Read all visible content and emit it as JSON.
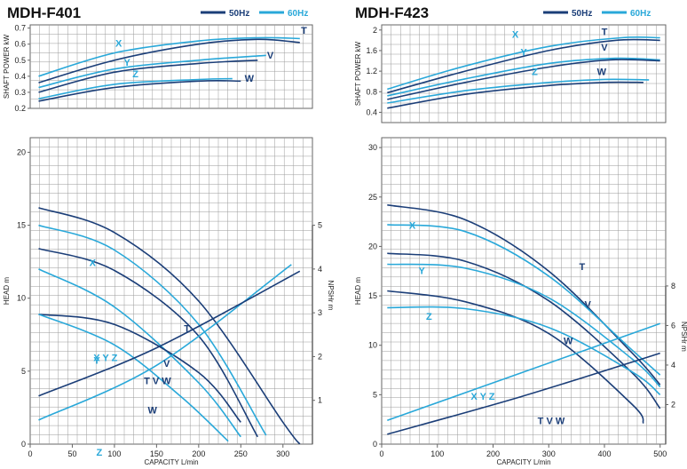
{
  "colors": {
    "c50": "#1b3e78",
    "c60": "#29a8d9",
    "grid": "#9a9a9a",
    "frame": "#666666",
    "text": "#222222"
  },
  "legend": {
    "hz50": "50Hz",
    "hz60": "60Hz"
  },
  "chart_data": [
    {
      "title": "MDH-F401",
      "xlabel": "CAPACITY  L/min",
      "power": {
        "type": "line",
        "ylabel": "SHAFT POWER  kW",
        "xlim": [
          0,
          335
        ],
        "ylim": [
          0.2,
          0.72
        ],
        "yticks": [
          0.2,
          0.3,
          0.4,
          0.5,
          0.6,
          0.7
        ],
        "xticks": [],
        "grid": true,
        "legend": "top-right",
        "series": [
          {
            "name": "T",
            "hz": "50Hz",
            "x": [
              10,
              100,
              200,
              270,
              320
            ],
            "y": [
              0.36,
              0.5,
              0.6,
              0.63,
              0.61
            ],
            "label_at": [
              325,
              0.665
            ]
          },
          {
            "name": "X",
            "hz": "60Hz",
            "x": [
              10,
              100,
              200,
              270,
              320
            ],
            "y": [
              0.4,
              0.545,
              0.62,
              0.64,
              0.635
            ],
            "label_at": [
              105,
              0.585
            ]
          },
          {
            "name": "Y",
            "hz": "60Hz",
            "x": [
              10,
              100,
              200,
              280
            ],
            "y": [
              0.33,
              0.445,
              0.5,
              0.53
            ],
            "label_at": [
              115,
              0.465
            ]
          },
          {
            "name": "V",
            "hz": "50Hz",
            "x": [
              10,
              100,
              200,
              270
            ],
            "y": [
              0.3,
              0.425,
              0.48,
              0.5
            ],
            "label_at": [
              285,
              0.51
            ]
          },
          {
            "name": "Z",
            "hz": "60Hz",
            "x": [
              10,
              100,
              200,
              240
            ],
            "y": [
              0.26,
              0.35,
              0.38,
              0.385
            ],
            "label_at": [
              125,
              0.395
            ]
          },
          {
            "name": "W",
            "hz": "50Hz",
            "x": [
              10,
              100,
              200,
              250
            ],
            "y": [
              0.245,
              0.33,
              0.37,
              0.37
            ],
            "label_at": [
              260,
              0.365
            ]
          }
        ]
      },
      "head": {
        "type": "line",
        "ylabel": "HEAD  m",
        "y2label": "NPSHr  m",
        "xlim": [
          0,
          335
        ],
        "ylim": [
          0,
          21
        ],
        "y2lim": [
          0,
          7
        ],
        "yticks": [
          0,
          5,
          10,
          15,
          20
        ],
        "y2ticks": [
          1,
          2,
          3,
          4,
          5
        ],
        "xticks": [
          0,
          50,
          100,
          150,
          200,
          250,
          300
        ],
        "grid": true,
        "series": [
          {
            "name": "T",
            "hz": "50Hz",
            "x": [
              10,
              100,
              200,
              300,
              320
            ],
            "y": [
              16.2,
              14.5,
              9.8,
              1.5,
              0
            ],
            "label_at": [
              186,
              7.7
            ]
          },
          {
            "name": "X",
            "hz": "60Hz",
            "x": [
              10,
              100,
              200,
              280
            ],
            "y": [
              15.0,
              13.3,
              8.2,
              0.6
            ],
            "label_at": [
              74,
              12.2
            ]
          },
          {
            "name": "V",
            "hz": "50Hz",
            "x": [
              10,
              100,
              200,
              270
            ],
            "y": [
              13.4,
              11.9,
              7.4,
              0.5
            ],
            "label_at": [
              162,
              5.3
            ]
          },
          {
            "name": "Y",
            "hz": "60Hz",
            "x": [
              10,
              100,
              200,
              250
            ],
            "y": [
              12.0,
              9.4,
              4.2,
              0.5
            ],
            "label_at": [
              79,
              5.5
            ]
          },
          {
            "name": "W",
            "hz": "50Hz",
            "x": [
              10,
              100,
              200,
              250
            ],
            "y": [
              8.9,
              8.2,
              4.9,
              1.5
            ],
            "label_at": [
              145,
              2.1
            ]
          },
          {
            "name": "Z",
            "hz": "60Hz",
            "x": [
              10,
              100,
              180,
              235
            ],
            "y": [
              8.9,
              6.8,
              3.2,
              0.2
            ],
            "label_at": [
              82,
              -0.8
            ]
          }
        ],
        "npsh": [
          {
            "name": "XYZ",
            "hz": "60Hz",
            "x": [
              10,
              150,
              310
            ],
            "y2": [
              0.55,
              1.8,
              4.1
            ]
          },
          {
            "name": "TVW",
            "hz": "50Hz",
            "x": [
              10,
              150,
              320
            ],
            "y2": [
              1.1,
              2.2,
              3.95
            ]
          }
        ],
        "npsh_labels": [
          {
            "text": "X Y Z",
            "hz": "60Hz",
            "at": [
              75,
              5.7
            ]
          },
          {
            "text": "T V W",
            "hz": "50Hz",
            "at": [
              135,
              4.1
            ]
          }
        ]
      }
    },
    {
      "title": "MDH-F423",
      "xlabel": "CAPACITY  L/min",
      "power": {
        "type": "line",
        "ylabel": "SHAFT POWER  kW",
        "xlim": [
          0,
          510
        ],
        "ylim": [
          0.2,
          2.1
        ],
        "yticks": [
          0.4,
          0.8,
          1.2,
          1.6,
          2.0
        ],
        "xticks": [],
        "grid": true,
        "legend": "top-right",
        "series": [
          {
            "name": "X",
            "hz": "60Hz",
            "x": [
              10,
              150,
              300,
              430,
              500
            ],
            "y": [
              0.85,
              1.3,
              1.68,
              1.85,
              1.85
            ],
            "label_at": [
              240,
              1.85
            ]
          },
          {
            "name": "T",
            "hz": "50Hz",
            "x": [
              10,
              150,
              300,
              420,
              500
            ],
            "y": [
              0.78,
              1.2,
              1.6,
              1.8,
              1.8
            ],
            "label_at": [
              400,
              1.9
            ]
          },
          {
            "name": "Y",
            "hz": "60Hz",
            "x": [
              10,
              150,
              300,
              420,
              500
            ],
            "y": [
              0.72,
              1.05,
              1.35,
              1.45,
              1.42
            ],
            "label_at": [
              255,
              1.5
            ]
          },
          {
            "name": "V",
            "hz": "50Hz",
            "x": [
              10,
              150,
              300,
              410,
              500
            ],
            "y": [
              0.65,
              0.98,
              1.28,
              1.42,
              1.4
            ],
            "label_at": [
              400,
              1.6
            ]
          },
          {
            "name": "Z",
            "hz": "60Hz",
            "x": [
              10,
              150,
              300,
              400,
              480
            ],
            "y": [
              0.58,
              0.82,
              0.98,
              1.04,
              1.03
            ],
            "label_at": [
              275,
              1.12
            ]
          },
          {
            "name": "W",
            "hz": "50Hz",
            "x": [
              10,
              150,
              300,
              400,
              470
            ],
            "y": [
              0.48,
              0.75,
              0.92,
              0.98,
              0.98
            ],
            "label_at": [
              395,
              1.12
            ]
          }
        ]
      },
      "head": {
        "type": "line",
        "ylabel": "HEAD  m",
        "y2label": "NPSHr  m",
        "xlim": [
          0,
          510
        ],
        "ylim": [
          0,
          31
        ],
        "y2lim": [
          0,
          15.5
        ],
        "yticks": [
          0,
          5,
          10,
          15,
          20,
          25,
          30
        ],
        "y2ticks": [
          2,
          4,
          6,
          8
        ],
        "xticks": [
          0,
          100,
          200,
          300,
          400,
          500
        ],
        "grid": true,
        "series": [
          {
            "name": "T",
            "hz": "50Hz",
            "x": [
              10,
              150,
              300,
              450,
              500
            ],
            "y": [
              24.2,
              22.7,
              17.5,
              9.2,
              6.0
            ],
            "label_at": [
              360,
              17.6
            ]
          },
          {
            "name": "X",
            "hz": "60Hz",
            "x": [
              10,
              150,
              300,
              450,
              500
            ],
            "y": [
              22.2,
              21.5,
              17.0,
              9.5,
              7.0
            ],
            "label_at": [
              55,
              21.8
            ]
          },
          {
            "name": "V",
            "hz": "50Hz",
            "x": [
              10,
              150,
              300,
              450,
              500
            ],
            "y": [
              19.3,
              18.5,
              14.5,
              7.2,
              3.6
            ],
            "label_at": [
              370,
              13.8
            ]
          },
          {
            "name": "Y",
            "hz": "60Hz",
            "x": [
              10,
              150,
              300,
              450,
              500
            ],
            "y": [
              18.2,
              17.8,
              14.8,
              8.6,
              5.8
            ],
            "label_at": [
              72,
              17.2
            ]
          },
          {
            "name": "W",
            "hz": "50Hz",
            "x": [
              10,
              150,
              300,
              450,
              470
            ],
            "y": [
              15.5,
              14.4,
              11.2,
              4.0,
              2.1
            ],
            "label_at": [
              335,
              10.1
            ]
          },
          {
            "name": "Z",
            "hz": "60Hz",
            "x": [
              10,
              150,
              300,
              450,
              500
            ],
            "y": [
              13.8,
              13.7,
              11.8,
              7.3,
              5.0
            ],
            "label_at": [
              85,
              12.6
            ]
          }
        ],
        "npsh": [
          {
            "name": "XYZ",
            "hz": "60Hz",
            "x": [
              10,
              250,
              500
            ],
            "y2": [
              1.2,
              3.6,
              6.1
            ]
          },
          {
            "name": "TVW",
            "hz": "50Hz",
            "x": [
              10,
              250,
              500
            ],
            "y2": [
              0.5,
              2.4,
              4.6
            ]
          }
        ],
        "npsh_labels": [
          {
            "text": "X Y Z",
            "hz": "60Hz",
            "at": [
              160,
              4.5
            ]
          },
          {
            "text": "T V W",
            "hz": "50Hz",
            "at": [
              280,
              2.0
            ]
          }
        ]
      }
    }
  ]
}
